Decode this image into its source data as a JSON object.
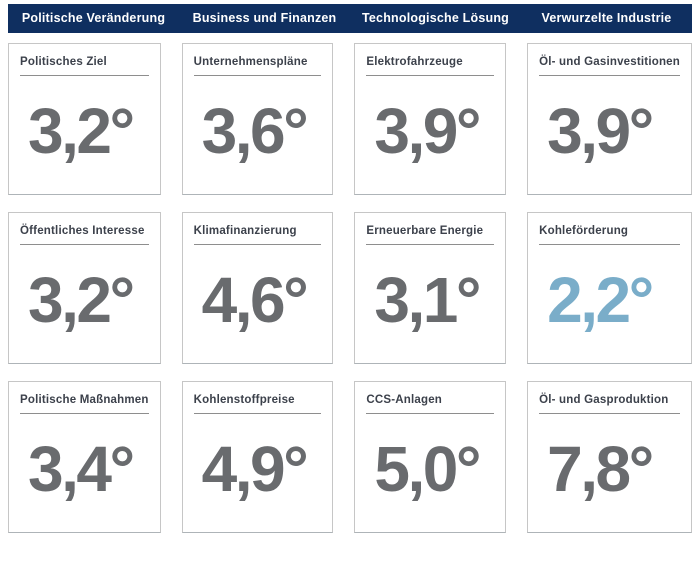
{
  "colors": {
    "header_background": "#0f2f60",
    "header_text": "#ffffff",
    "card_border": "#c6c6c6",
    "label_text": "#3c414b",
    "label_underline": "#8e8e8e",
    "value_gray": "#696b6e",
    "value_highlight_blue": "#7aadc9"
  },
  "chart_data": {
    "type": "table",
    "title": "",
    "layout": "4 columns x 3 rows of KPI temperature cards",
    "columns": [
      {
        "header": "Politische Veränderung",
        "items": [
          {
            "label": "Politisches Ziel",
            "value_display": "3,2°",
            "value": 3.2,
            "highlighted": false
          },
          {
            "label": "Öffentliches Interesse",
            "value_display": "3,2°",
            "value": 3.2,
            "highlighted": false
          },
          {
            "label": "Politische Maßnahmen",
            "value_display": "3,4°",
            "value": 3.4,
            "highlighted": false
          }
        ]
      },
      {
        "header": "Business und Finanzen",
        "items": [
          {
            "label": "Unternehmenspläne",
            "value_display": "3,6°",
            "value": 3.6,
            "highlighted": false
          },
          {
            "label": "Klimafinanzierung",
            "value_display": "4,6°",
            "value": 4.6,
            "highlighted": false
          },
          {
            "label": "Kohlenstoffpreise",
            "value_display": "4,9°",
            "value": 4.9,
            "highlighted": false
          }
        ]
      },
      {
        "header": "Technologische Lösung",
        "items": [
          {
            "label": "Elektrofahrzeuge",
            "value_display": "3,9°",
            "value": 3.9,
            "highlighted": false
          },
          {
            "label": "Erneuerbare Energie",
            "value_display": "3,1°",
            "value": 3.1,
            "highlighted": false
          },
          {
            "label": "CCS-Anlagen",
            "value_display": "5,0°",
            "value": 5.0,
            "highlighted": false
          }
        ]
      },
      {
        "header": "Verwurzelte Industrie",
        "items": [
          {
            "label": "Öl- und Gasinvestitionen",
            "value_display": "3,9°",
            "value": 3.9,
            "highlighted": false
          },
          {
            "label": "Kohleförderung",
            "value_display": "2,2°",
            "value": 2.2,
            "highlighted": true
          },
          {
            "label": "Öl- und Gasproduktion",
            "value_display": "7,8°",
            "value": 7.8,
            "highlighted": false
          }
        ]
      }
    ]
  }
}
